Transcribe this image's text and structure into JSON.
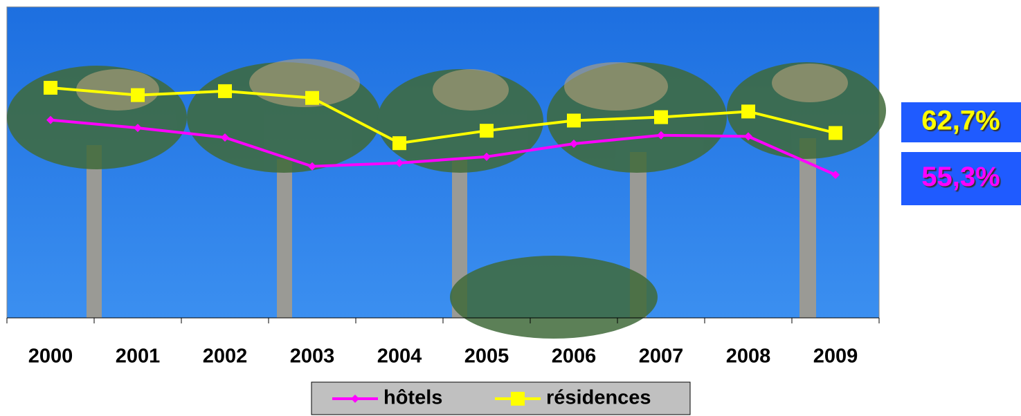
{
  "chart_data": {
    "type": "line",
    "categories": [
      "2000",
      "2001",
      "2002",
      "2003",
      "2004",
      "2005",
      "2006",
      "2007",
      "2008",
      "2009"
    ],
    "series": [
      {
        "name": "hôtels",
        "color": "#ff00ff",
        "marker": "diamond",
        "values": [
          65.0,
          63.6,
          61.9,
          56.8,
          57.4,
          58.5,
          60.8,
          62.3,
          62.1,
          55.3
        ],
        "value_labels": [
          null,
          null,
          null,
          null,
          null,
          null,
          null,
          null,
          null,
          "55,3%"
        ]
      },
      {
        "name": "résidences",
        "color": "#ffff00",
        "marker": "square",
        "values": [
          70.7,
          69.4,
          70.1,
          68.9,
          60.9,
          63.1,
          64.9,
          65.5,
          66.5,
          62.7
        ],
        "value_labels": [
          null,
          null,
          null,
          null,
          null,
          null,
          null,
          null,
          null,
          "62,7%"
        ]
      }
    ],
    "ylim": [
      30,
      85
    ],
    "legend": "bottom"
  }
}
